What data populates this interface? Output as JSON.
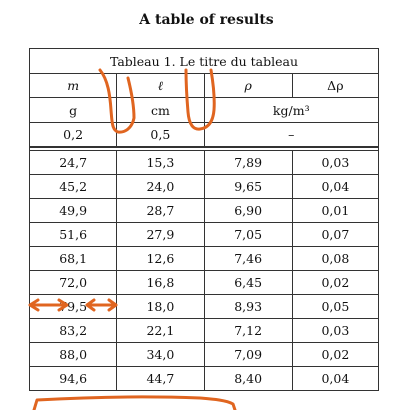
{
  "title": "A table of results",
  "table": {
    "caption": "Tableau 1. Le titre du tableau",
    "headers": [
      "m",
      "ℓ",
      "ρ",
      "Δρ"
    ],
    "units": [
      "g",
      "cm",
      "kg/m³"
    ],
    "first_row": [
      "0,2",
      "0,5",
      "–"
    ],
    "rows": [
      [
        "24,7",
        "15,3",
        "7,89",
        "0,03"
      ],
      [
        "45,2",
        "24,0",
        "9,65",
        "0,04"
      ],
      [
        "49,9",
        "28,7",
        "6,90",
        "0,01"
      ],
      [
        "51,6",
        "27,9",
        "7,05",
        "0,07"
      ],
      [
        "68,1",
        "12,6",
        "7,46",
        "0,08"
      ],
      [
        "72,0",
        "16,8",
        "6,45",
        "0,02"
      ],
      [
        "79,5",
        "18,0",
        "8,93",
        "0,05"
      ],
      [
        "83,2",
        "22,1",
        "7,12",
        "0,03"
      ],
      [
        "88,0",
        "34,0",
        "7,09",
        "0,02"
      ],
      [
        "94,6",
        "44,7",
        "8,40",
        "0,04"
      ]
    ]
  },
  "annotation_color": "#e06520"
}
